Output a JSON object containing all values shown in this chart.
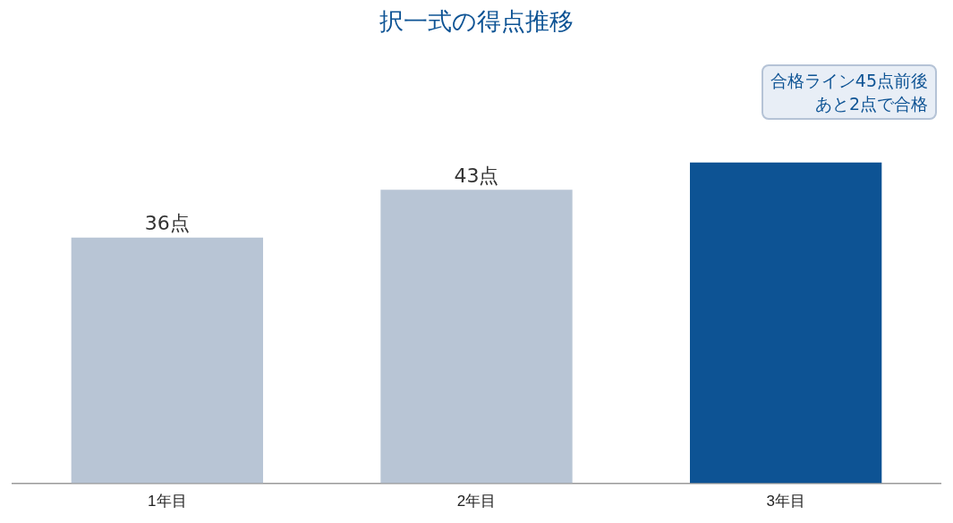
{
  "chart_data": {
    "type": "bar",
    "title": "択一式の得点推移",
    "categories": [
      "1年目",
      "2年目",
      "3年目"
    ],
    "values": [
      36,
      43,
      47
    ],
    "colors": [
      "#b8c5d5",
      "#b8c5d5",
      "#0d5394"
    ],
    "value_labels": [
      "36点",
      "43点",
      null
    ],
    "annotations": [
      "合格ライン45点前後",
      "あと2点で合格"
    ],
    "legend": false
  }
}
